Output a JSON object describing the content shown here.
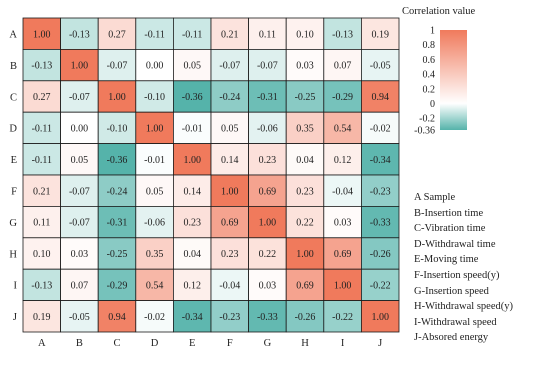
{
  "chart_data": {
    "type": "heatmap",
    "rows": [
      "A",
      "B",
      "C",
      "D",
      "E",
      "F",
      "G",
      "H",
      "I",
      "J"
    ],
    "columns": [
      "A",
      "B",
      "C",
      "D",
      "E",
      "F",
      "G",
      "H",
      "I",
      "J"
    ],
    "values": [
      [
        "1.00",
        "-0.13",
        "0.27",
        "-0.11",
        "-0.11",
        "0.21",
        "0.11",
        "0.10",
        "-0.13",
        "0.19"
      ],
      [
        "-0.13",
        "1.00",
        "-0.07",
        "0.00",
        "0.05",
        "-0.07",
        "-0.07",
        "0.03",
        "0.07",
        "-0.05"
      ],
      [
        "0.27",
        "-0.07",
        "1.00",
        "-0.10",
        "-0.36",
        "-0.24",
        "-0.31",
        "-0.25",
        "-0.29",
        "0.94"
      ],
      [
        "-0.11",
        "0.00",
        "-0.10",
        "1.00",
        "-0.01",
        "0.05",
        "-0.06",
        "0.35",
        "0.54",
        "-0.02"
      ],
      [
        "-0.11",
        "0.05",
        "-0.36",
        "-0.01",
        "1.00",
        "0.14",
        "0.23",
        "0.04",
        "0.12",
        "-0.34"
      ],
      [
        "0.21",
        "-0.07",
        "-0.24",
        "0.05",
        "0.14",
        "1.00",
        "0.69",
        "0.23",
        "-0.04",
        "-0.23"
      ],
      [
        "0.11",
        "-0.07",
        "-0.31",
        "-0.06",
        "0.23",
        "0.69",
        "1.00",
        "0.22",
        "0.03",
        "-0.33"
      ],
      [
        "0.10",
        "0.03",
        "-0.25",
        "0.35",
        "0.04",
        "0.23",
        "0.22",
        "1.00",
        "0.69",
        "-0.26"
      ],
      [
        "-0.13",
        "0.07",
        "-0.29",
        "0.54",
        "0.12",
        "-0.04",
        "0.03",
        "0.69",
        "1.00",
        "-0.22"
      ],
      [
        "0.19",
        "-0.05",
        "0.94",
        "-0.02",
        "-0.34",
        "-0.23",
        "-0.33",
        "-0.26",
        "-0.22",
        "1.00"
      ]
    ],
    "colorbar": {
      "title": "Correlation value",
      "ticks": [
        "1",
        "0.8",
        "0.6",
        "0.4",
        "0.2",
        "0",
        "-0.2",
        "-0.36"
      ],
      "range": [
        -0.36,
        1
      ],
      "colors": {
        "low": "#55b3aa",
        "mid": "#ffffff",
        "high": "#f07a5c"
      }
    },
    "legend_entries": [
      "A Sample",
      "B-Insertion time",
      "C-Vibration time",
      "D-Withdrawal time",
      "E-Moving time",
      "F-Insertion speed(y)",
      "G-Insertion speed",
      "H-Withdrawal speed(y)",
      "I-Withdrawal speed",
      "J-Absored energy"
    ]
  }
}
